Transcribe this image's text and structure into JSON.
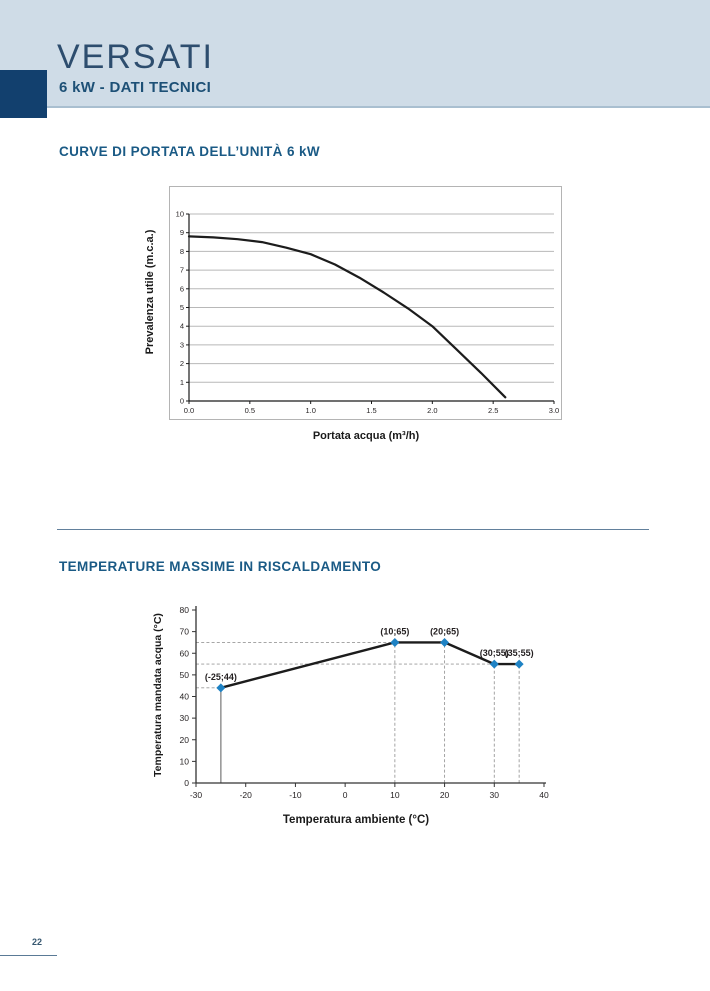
{
  "header": {
    "brand": "VERSATI",
    "subtitle": "6 kW - DATI TECNICI"
  },
  "sections": [
    {
      "title": "CURVE DI PORTATA DELL’UNITÀ 6 kW"
    },
    {
      "title": "TEMPERATURE MASSIME IN RISCALDAMENTO"
    }
  ],
  "footer": {
    "page_number": "22"
  },
  "colors": {
    "header_bg": "#cfdce7",
    "navy": "#12406e",
    "section_title": "#1a5a85",
    "grid": "#b8b8b8",
    "axis": "#1a1a1a",
    "axis2": "#333333",
    "text": "#231f20",
    "curve": "#1c1c1c",
    "marker": "#1e82c4",
    "dash": "#9a9a9a",
    "solid_guide": "#8a8a8a"
  },
  "chart_data": [
    {
      "type": "line",
      "title": "CURVE DI PORTATA DELL’UNITÀ 6 kW",
      "xlabel": "Portata acqua (m³/h)",
      "ylabel": "Prevalenza utile (m.c.a.)",
      "xlim": [
        0,
        3
      ],
      "ylim": [
        0,
        10
      ],
      "xticks": [
        "0.0",
        "0.5",
        "1.0",
        "1.5",
        "2.0",
        "2.5",
        "3.0"
      ],
      "yticks": [
        0,
        1,
        2,
        3,
        4,
        5,
        6,
        7,
        8,
        9,
        10
      ],
      "grid": "horizontal",
      "series": [
        {
          "name": "prevalenza",
          "x": [
            0,
            0.2,
            0.4,
            0.6,
            0.8,
            1.0,
            1.2,
            1.4,
            1.6,
            1.8,
            2.0,
            2.2,
            2.4,
            2.6
          ],
          "y": [
            8.8,
            8.75,
            8.65,
            8.5,
            8.2,
            7.85,
            7.3,
            6.6,
            5.8,
            4.95,
            4.0,
            2.75,
            1.5,
            0.2
          ]
        }
      ]
    },
    {
      "type": "line",
      "title": "TEMPERATURE MASSIME IN RISCALDAMENTO",
      "xlabel": "Temperatura ambiente (°C)",
      "ylabel": "Temperatura mandata acqua (°C)",
      "xlim": [
        -30,
        40
      ],
      "ylim": [
        0,
        80
      ],
      "xticks": [
        -30,
        -20,
        -10,
        0,
        10,
        20,
        30,
        40
      ],
      "yticks": [
        0,
        10,
        20,
        30,
        40,
        50,
        60,
        70,
        80
      ],
      "grid": "off",
      "points": [
        {
          "x": -25,
          "y": 44,
          "label": "(-25;44)"
        },
        {
          "x": 10,
          "y": 65,
          "label": "(10;65)"
        },
        {
          "x": 20,
          "y": 65,
          "label": "(20;65)"
        },
        {
          "x": 30,
          "y": 55,
          "label": "(30;55)"
        },
        {
          "x": 35,
          "y": 55,
          "label": "(35;55)"
        }
      ],
      "hguides": [
        {
          "y": 65,
          "x_to": 20
        },
        {
          "y": 55,
          "x_to": 35
        },
        {
          "y": 44,
          "x_to": -25
        }
      ],
      "vguides": [
        {
          "x": -25,
          "y_to": 44,
          "style": "solid"
        },
        {
          "x": 10,
          "y_to": 65,
          "style": "dashed"
        },
        {
          "x": 20,
          "y_to": 65,
          "style": "dashed"
        },
        {
          "x": 30,
          "y_to": 55,
          "style": "dashed"
        },
        {
          "x": 35,
          "y_to": 55,
          "style": "dashed"
        }
      ]
    }
  ]
}
